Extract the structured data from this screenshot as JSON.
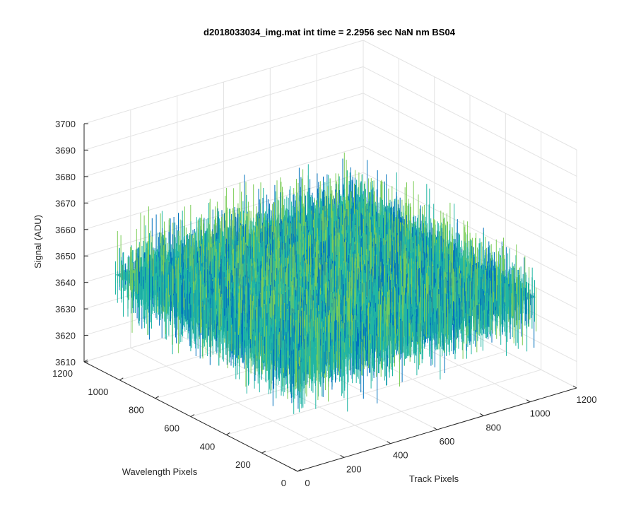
{
  "chart_data": {
    "type": "surface",
    "title": "d2018033034_img.mat int time = 2.2956 sec  NaN nm BS04",
    "xlabel": "Track Pixels",
    "ylabel": "Wavelength Pixels",
    "zlabel": "Signal (ADU)",
    "xlim": [
      0,
      1200
    ],
    "ylim": [
      0,
      1200
    ],
    "zlim": [
      3610,
      3700
    ],
    "x_ticks": [
      "0",
      "200",
      "400",
      "600",
      "800",
      "1000",
      "1200"
    ],
    "y_ticks": [
      "0",
      "200",
      "400",
      "600",
      "800",
      "1000",
      "1200"
    ],
    "z_ticks": [
      "3610",
      "3620",
      "3630",
      "3640",
      "3650",
      "3660",
      "3670",
      "3680",
      "3690",
      "3700"
    ],
    "x_extent": [
      0,
      1024
    ],
    "y_extent": [
      0,
      1024
    ],
    "signal_mean": 3649,
    "signal_range": [
      3615,
      3700
    ],
    "grid": true,
    "colormap": "parula",
    "colors": {
      "low": "#0072bd",
      "mid": "#21b6a4",
      "mid_high": "#7ccd57",
      "high": "#edb120"
    }
  }
}
